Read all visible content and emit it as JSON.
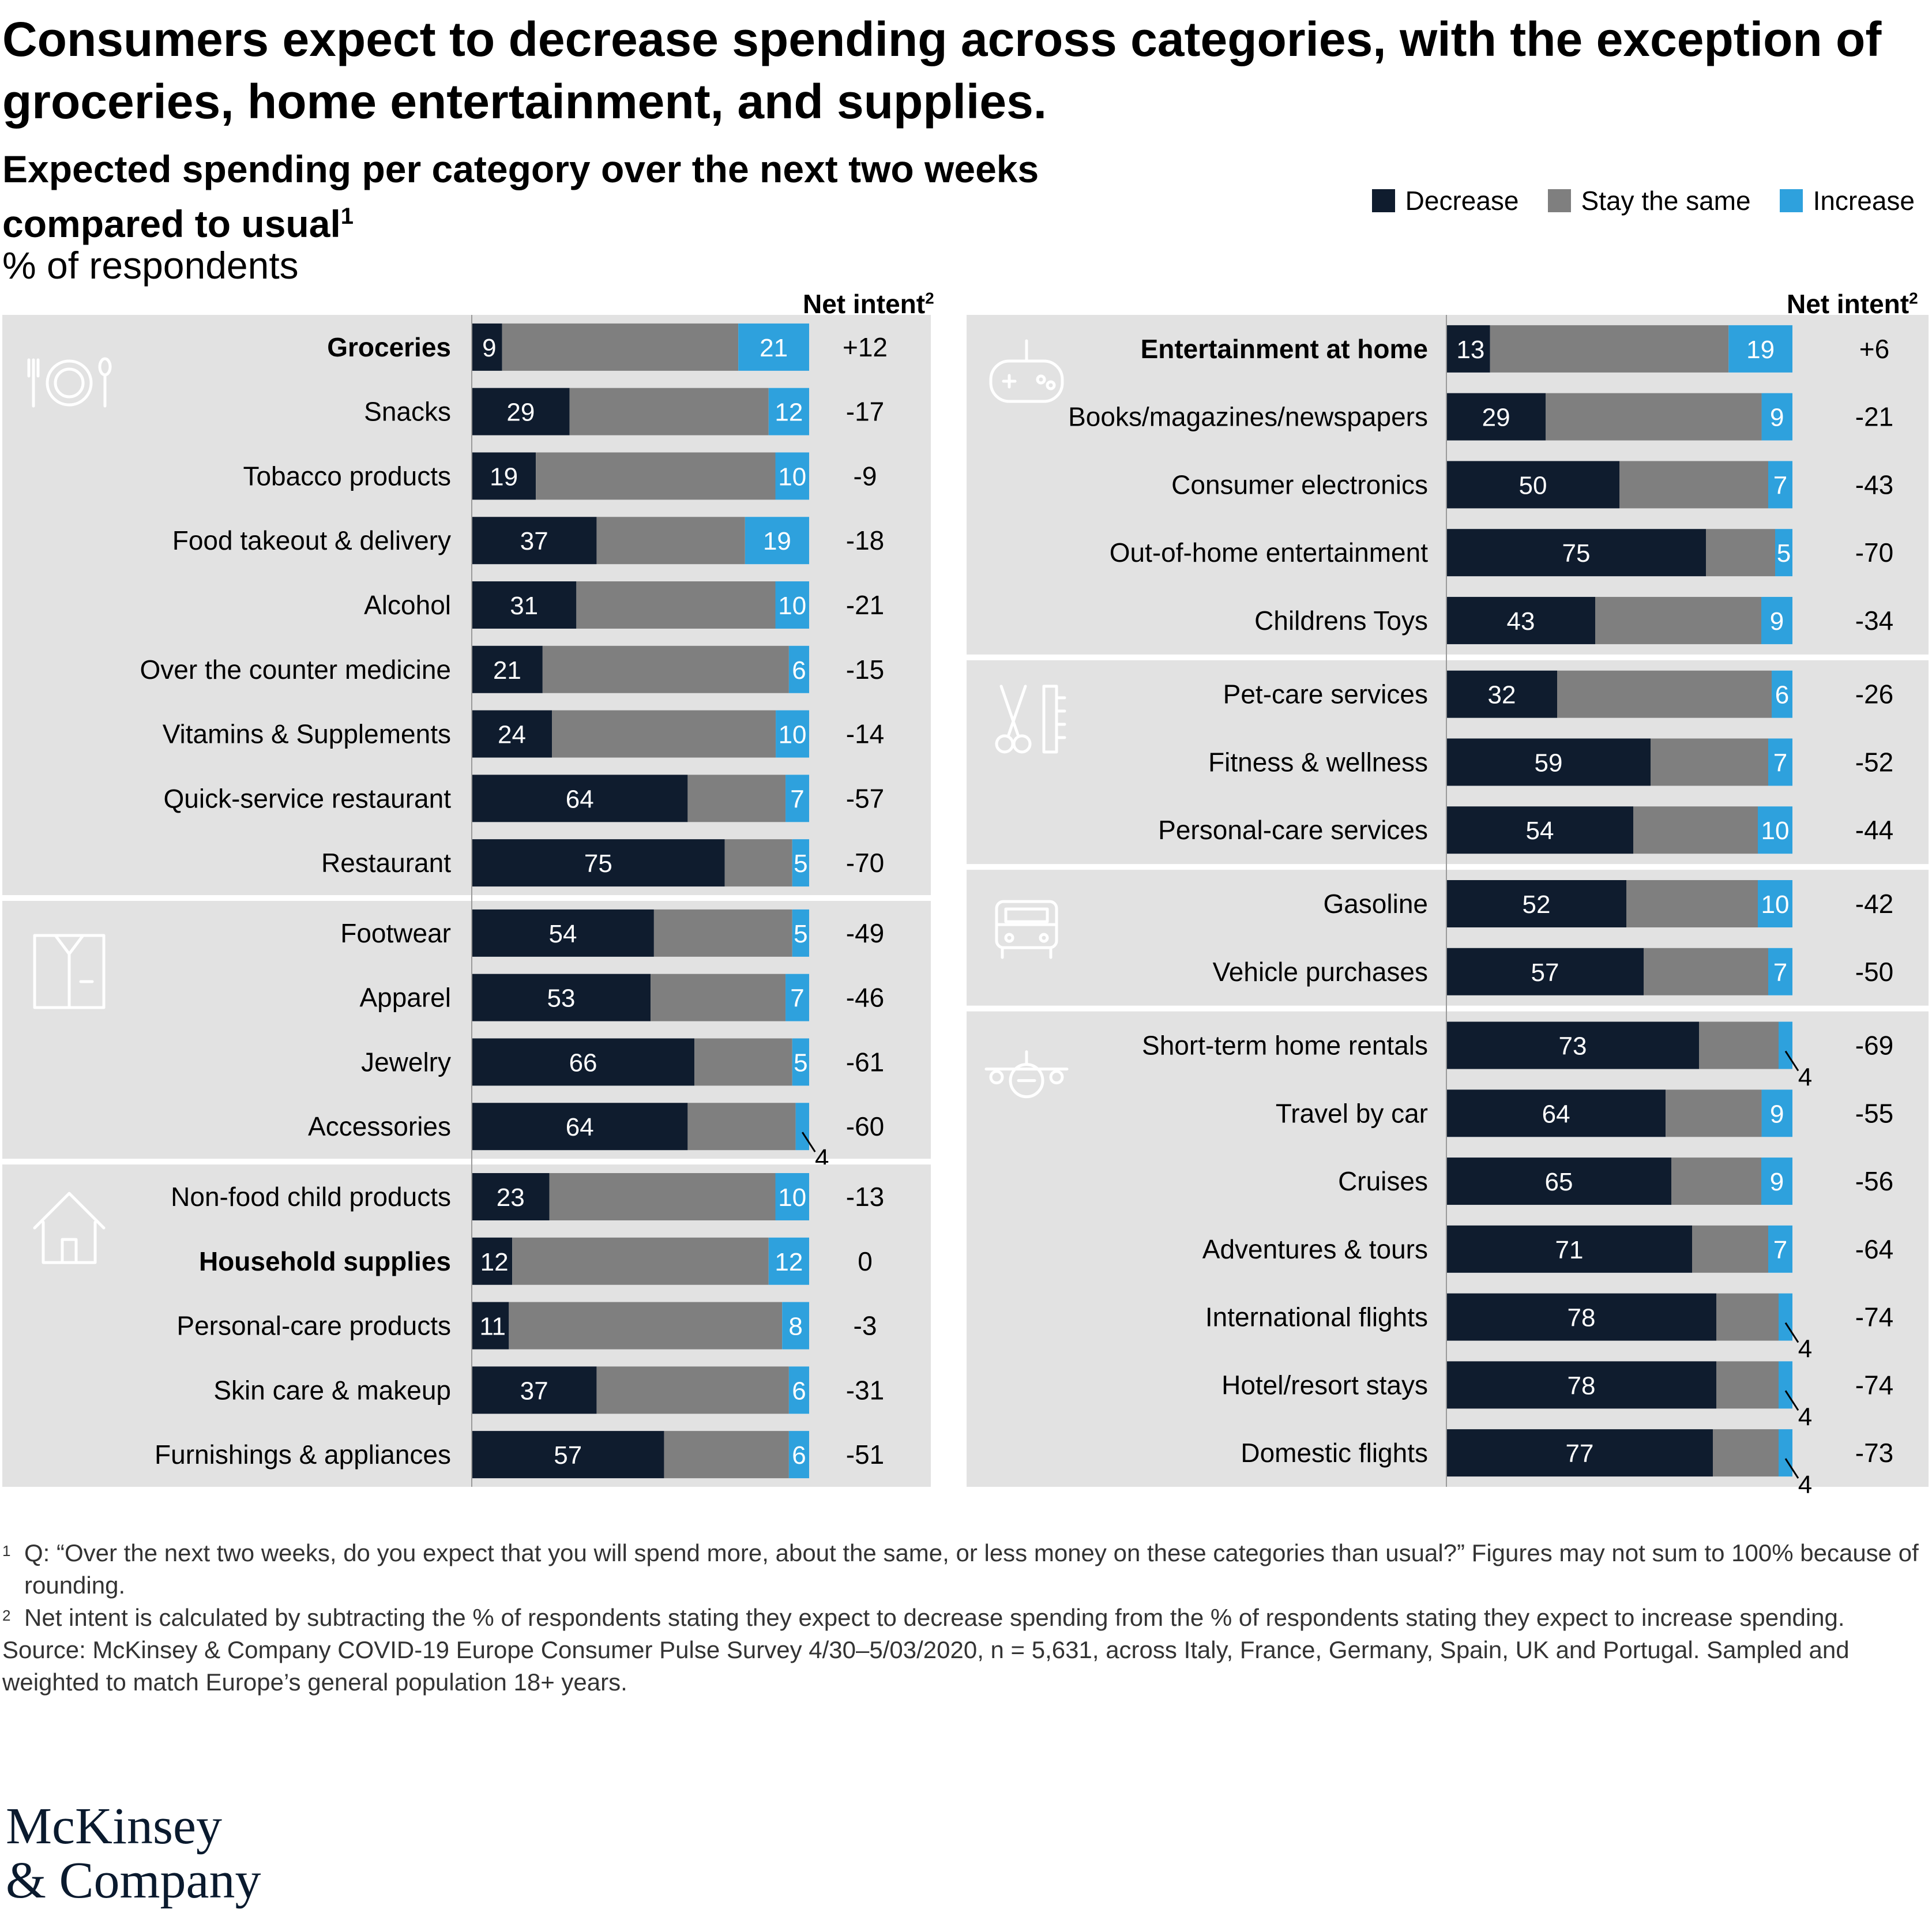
{
  "headline": "Consumers expect to decrease spending across categories, with the exception of groceries, home entertainment, and supplies.",
  "subtitle": "Expected spending per category over the next two weeks compared to usual",
  "subtitle_note": "1",
  "units": "% of respondents",
  "net_intent_label": "Net intent",
  "net_intent_note": "2",
  "legend": [
    {
      "label": "Decrease",
      "color": "#0f1c2e"
    },
    {
      "label": "Stay the same",
      "color": "#7f7f7f"
    },
    {
      "label": "Increase",
      "color": "#2ea1dd"
    }
  ],
  "chart_data": {
    "type": "bar",
    "stacked": true,
    "orientation": "horizontal",
    "series_names": [
      "Decrease",
      "Stay the same",
      "Increase"
    ],
    "columns": [
      {
        "groups": [
          {
            "icon": "dining-icon",
            "rows": [
              {
                "label": "Groceries",
                "bold": true,
                "decrease": 9,
                "same": 70,
                "increase": 21,
                "net": "+12"
              },
              {
                "label": "Snacks",
                "decrease": 29,
                "same": 59,
                "increase": 12,
                "net": "-17"
              },
              {
                "label": "Tobacco products",
                "decrease": 19,
                "same": 71,
                "increase": 10,
                "net": "-9"
              },
              {
                "label": "Food takeout & delivery",
                "decrease": 37,
                "same": 44,
                "increase": 19,
                "net": "-18"
              },
              {
                "label": "Alcohol",
                "decrease": 31,
                "same": 59,
                "increase": 10,
                "net": "-21"
              },
              {
                "label": "Over the counter medicine",
                "decrease": 21,
                "same": 73,
                "increase": 6,
                "net": "-15"
              },
              {
                "label": "Vitamins & Supplements",
                "decrease": 24,
                "same": 67,
                "increase": 10,
                "net": "-14"
              },
              {
                "label": "Quick-service restaurant",
                "decrease": 64,
                "same": 29,
                "increase": 7,
                "net": "-57"
              },
              {
                "label": "Restaurant",
                "decrease": 75,
                "same": 20,
                "increase": 5,
                "net": "-70"
              }
            ]
          },
          {
            "icon": "shirt-icon",
            "rows": [
              {
                "label": "Footwear",
                "decrease": 54,
                "same": 41,
                "increase": 5,
                "net": "-49"
              },
              {
                "label": "Apparel",
                "decrease": 53,
                "same": 40,
                "increase": 7,
                "net": "-46"
              },
              {
                "label": "Jewelry",
                "decrease": 66,
                "same": 29,
                "increase": 5,
                "net": "-61"
              },
              {
                "label": "Accessories",
                "decrease": 64,
                "same": 32,
                "increase": 4,
                "net": "-60"
              }
            ]
          },
          {
            "icon": "house-icon",
            "rows": [
              {
                "label": "Non-food child products",
                "decrease": 23,
                "same": 67,
                "increase": 10,
                "net": "-13"
              },
              {
                "label": "Household supplies",
                "bold": true,
                "decrease": 12,
                "same": 76,
                "increase": 12,
                "net": "0"
              },
              {
                "label": "Personal-care products",
                "decrease": 11,
                "same": 81,
                "increase": 8,
                "net": "-3"
              },
              {
                "label": "Skin care & makeup",
                "decrease": 37,
                "same": 57,
                "increase": 6,
                "net": "-31"
              },
              {
                "label": "Furnishings & appliances",
                "decrease": 57,
                "same": 37,
                "increase": 6,
                "net": "-51"
              }
            ]
          }
        ]
      },
      {
        "groups": [
          {
            "icon": "gamepad-icon",
            "rows": [
              {
                "label": "Entertainment at home",
                "bold": true,
                "decrease": 13,
                "same": 71,
                "increase": 19,
                "net": "+6"
              },
              {
                "label": "Books/magazines/newspapers",
                "decrease": 29,
                "same": 63,
                "increase": 9,
                "net": "-21"
              },
              {
                "label": "Consumer electronics",
                "decrease": 50,
                "same": 43,
                "increase": 7,
                "net": "-43"
              },
              {
                "label": "Out-of-home entertainment",
                "decrease": 75,
                "same": 20,
                "increase": 5,
                "net": "-70"
              },
              {
                "label": "Childrens Toys",
                "decrease": 43,
                "same": 48,
                "increase": 9,
                "net": "-34"
              }
            ]
          },
          {
            "icon": "scissors-comb-icon",
            "rows": [
              {
                "label": "Pet-care services",
                "decrease": 32,
                "same": 62,
                "increase": 6,
                "net": "-26"
              },
              {
                "label": "Fitness & wellness",
                "decrease": 59,
                "same": 34,
                "increase": 7,
                "net": "-52"
              },
              {
                "label": "Personal-care services",
                "decrease": 54,
                "same": 36,
                "increase": 10,
                "net": "-44"
              }
            ]
          },
          {
            "icon": "car-icon",
            "rows": [
              {
                "label": "Gasoline",
                "decrease": 52,
                "same": 38,
                "increase": 10,
                "net": "-42"
              },
              {
                "label": "Vehicle purchases",
                "decrease": 57,
                "same": 36,
                "increase": 7,
                "net": "-50"
              }
            ]
          },
          {
            "icon": "plane-icon",
            "rows": [
              {
                "label": "Short-term home rentals",
                "decrease": 73,
                "same": 23,
                "increase": 4,
                "net": "-69"
              },
              {
                "label": "Travel by car",
                "decrease": 64,
                "same": 28,
                "increase": 9,
                "net": "-55"
              },
              {
                "label": "Cruises",
                "decrease": 65,
                "same": 26,
                "increase": 9,
                "net": "-56"
              },
              {
                "label": "Adventures & tours",
                "decrease": 71,
                "same": 22,
                "increase": 7,
                "net": "-64"
              },
              {
                "label": "International flights",
                "decrease": 78,
                "same": 18,
                "increase": 4,
                "net": "-74"
              },
              {
                "label": "Hotel/resort stays",
                "decrease": 78,
                "same": 18,
                "increase": 4,
                "net": "-74"
              },
              {
                "label": "Domestic flights",
                "decrease": 77,
                "same": 19,
                "increase": 4,
                "net": "-73"
              }
            ]
          }
        ]
      }
    ]
  },
  "footnotes": [
    {
      "mark": "1",
      "text": "Q: “Over the next two weeks, do you expect that you will spend more, about the same, or less money on these categories than usual?” Figures may not sum to 100% because of rounding."
    },
    {
      "mark": "2",
      "text": "Net intent is calculated by subtracting the % of respondents stating they expect to decrease spending from the % of respondents stating they expect to increase spending."
    }
  ],
  "source": "Source: McKinsey & Company COVID-19 Europe Consumer Pulse Survey 4/30–5/03/2020, n = 5,631, across Italy, France, Germany, Spain, UK and Portugal. Sampled and weighted to match Europe’s general population 18+ years.",
  "logo": {
    "line1": "McKinsey",
    "line2": "& Company"
  }
}
